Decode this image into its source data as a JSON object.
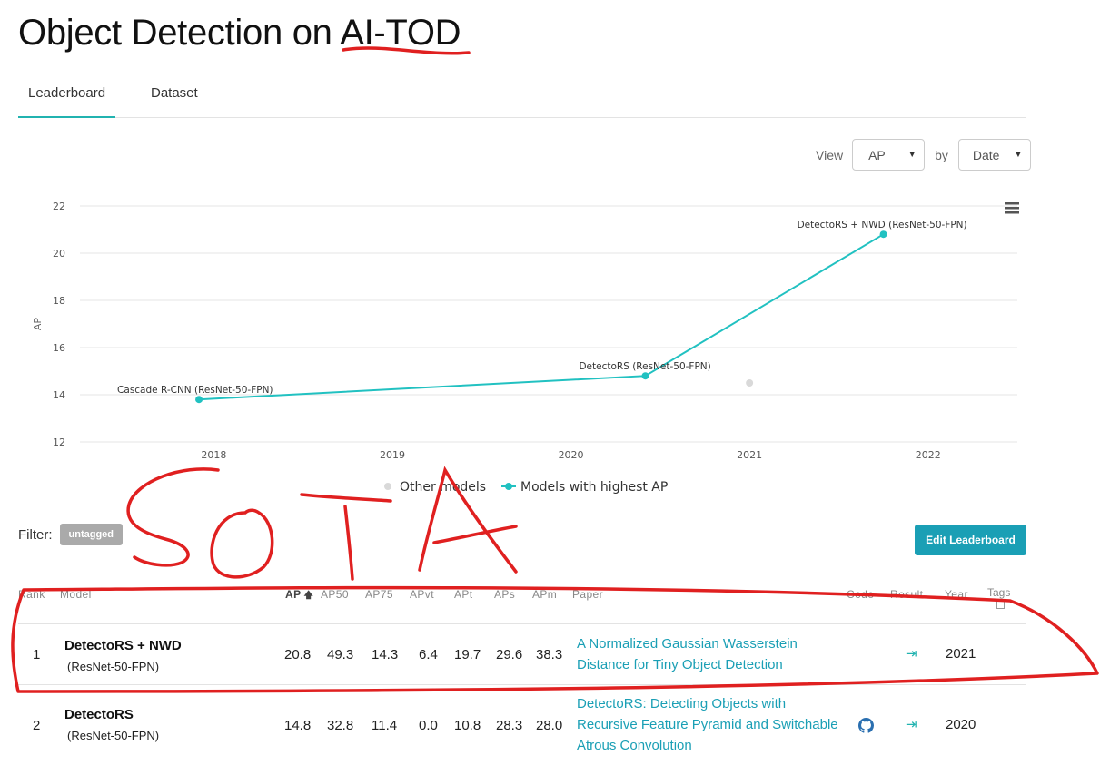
{
  "page": {
    "title": "Object Detection on AI-TOD"
  },
  "tabs": [
    {
      "label": "Leaderboard"
    },
    {
      "label": "Dataset"
    }
  ],
  "controls": {
    "view_label": "View",
    "view_value": "AP",
    "by_label": "by",
    "by_value": "Date"
  },
  "chart_data": {
    "type": "line",
    "xlabel": "",
    "ylabel": "AP",
    "xlim": [
      "2017-04",
      "2022-07"
    ],
    "ylim": [
      12,
      22
    ],
    "x_ticks": [
      "2018",
      "2019",
      "2020",
      "2021",
      "2022"
    ],
    "y_ticks": [
      12,
      14,
      16,
      18,
      20,
      22
    ],
    "grid": true,
    "legend_position": "bottom-center",
    "legend": [
      "Other models",
      "Models with highest AP"
    ],
    "series": [
      {
        "name": "Models with highest AP",
        "color": "#21c1c1",
        "points": [
          {
            "x": "2017-12",
            "y": 13.8,
            "label": "Cascade R-CNN (ResNet-50-FPN)"
          },
          {
            "x": "2020-06",
            "y": 14.8,
            "label": "DetectoRS (ResNet-50-FPN)"
          },
          {
            "x": "2021-10",
            "y": 20.8,
            "label": "DetectoRS + NWD (ResNet-50-FPN)"
          }
        ]
      },
      {
        "name": "Other models",
        "color": "#d9d9d9",
        "points": [
          {
            "x": "2021-01",
            "y": 14.5
          }
        ]
      }
    ]
  },
  "filter": {
    "label": "Filter:",
    "badge": "untagged"
  },
  "edit_button": "Edit Leaderboard",
  "table": {
    "headers": {
      "rank": "Rank",
      "model": "Model",
      "ap": "AP",
      "ap50": "AP50",
      "ap75": "AP75",
      "apvt": "APvt",
      "apt": "APt",
      "aps": "APs",
      "apm": "APm",
      "paper": "Paper",
      "code": "Code",
      "result": "Result",
      "year": "Year",
      "tags": "Tags"
    },
    "rows": [
      {
        "rank": "1",
        "model": "DetectoRS + NWD",
        "model_sub": "(ResNet-50-FPN)",
        "ap": "20.8",
        "ap50": "49.3",
        "ap75": "14.3",
        "apvt": "6.4",
        "apt": "19.7",
        "aps": "29.6",
        "apm": "38.3",
        "paper_line1": "A Normalized Gaussian Wasserstein",
        "paper_line2": "Distance for Tiny Object Detection",
        "paper_line3": "",
        "year": "2021"
      },
      {
        "rank": "2",
        "model": "DetectoRS",
        "model_sub": "(ResNet-50-FPN)",
        "ap": "14.8",
        "ap50": "32.8",
        "ap75": "11.4",
        "apvt": "0.0",
        "apt": "10.8",
        "aps": "28.3",
        "apm": "28.0",
        "paper_line1": "DetectoRS: Detecting Objects with",
        "paper_line2": "Recursive Feature Pyramid and Switchable",
        "paper_line3": "Atrous Convolution",
        "year": "2020"
      }
    ]
  },
  "annotation": {
    "text": "SOTA",
    "color": "#e02020"
  }
}
